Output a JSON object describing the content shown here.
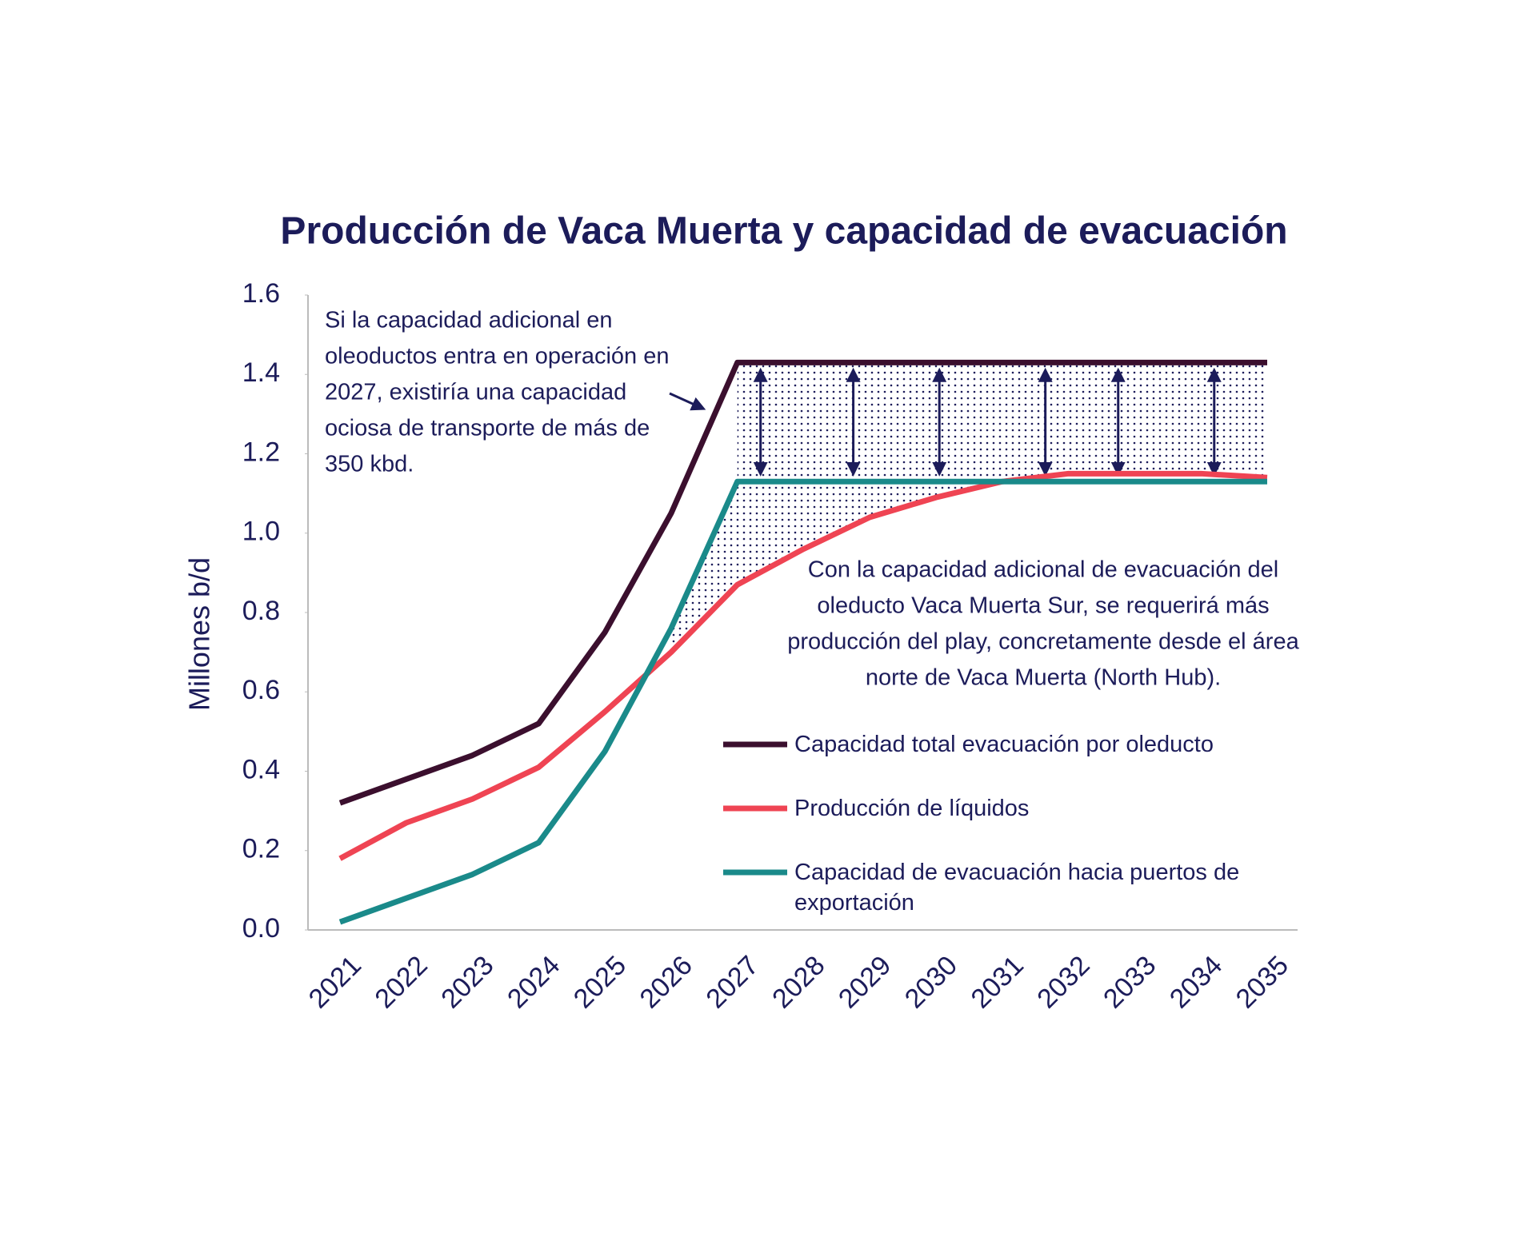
{
  "chart_data": {
    "type": "line",
    "title": "Producción de Vaca Muerta y capacidad de evacuación",
    "y_label": "Millones b/d",
    "categories": [
      "2021",
      "2022",
      "2023",
      "2024",
      "2025",
      "2026",
      "2027",
      "2028",
      "2029",
      "2030",
      "2031",
      "2032",
      "2033",
      "2034",
      "2035"
    ],
    "series": [
      {
        "name": "Capacidad total evacuación por oleducto",
        "color": "#3b0f2e",
        "values": [
          0.32,
          0.38,
          0.44,
          0.52,
          0.75,
          1.05,
          1.43,
          1.43,
          1.43,
          1.43,
          1.43,
          1.43,
          1.43,
          1.43,
          1.43
        ]
      },
      {
        "name": "Producción de líquidos",
        "color": "#ef4453",
        "values": [
          0.18,
          0.27,
          0.33,
          0.41,
          0.55,
          0.7,
          0.87,
          0.96,
          1.04,
          1.09,
          1.13,
          1.15,
          1.15,
          1.15,
          1.14
        ]
      },
      {
        "name": "Capacidad de evacuación hacia puertos de exportación",
        "color": "#1a8a8a",
        "values": [
          0.02,
          0.08,
          0.14,
          0.22,
          0.45,
          0.76,
          1.13,
          1.13,
          1.13,
          1.13,
          1.13,
          1.13,
          1.13,
          1.13,
          1.13
        ]
      }
    ],
    "ylim": [
      0,
      1.6
    ],
    "yticks": [
      {
        "value": 0,
        "label": "0.0"
      },
      {
        "value": 0.2,
        "label": "0.2"
      },
      {
        "value": 0.4,
        "label": "0.4"
      },
      {
        "value": 0.6,
        "label": "0.6"
      },
      {
        "value": 0.8,
        "label": "0.8"
      },
      {
        "value": 1,
        "label": "1.0"
      },
      {
        "value": 1.2,
        "label": "1.2"
      },
      {
        "value": 1.4,
        "label": "1.4"
      },
      {
        "value": 1.6,
        "label": "1.6"
      }
    ],
    "annotations": [
      [
        "Si la capacidad adicional en",
        "oleoductos entra en operación en",
        "2027, existiría una capacidad",
        "ociosa de transporte de más de",
        "350 kbd."
      ],
      [
        "Con la capacidad adicional de evacuación del",
        "oleducto Vaca Muerta Sur, se requerirá más",
        "producción del play, concretamente desde el área",
        "norte de Vaca Muerta (North Hub)."
      ]
    ]
  }
}
